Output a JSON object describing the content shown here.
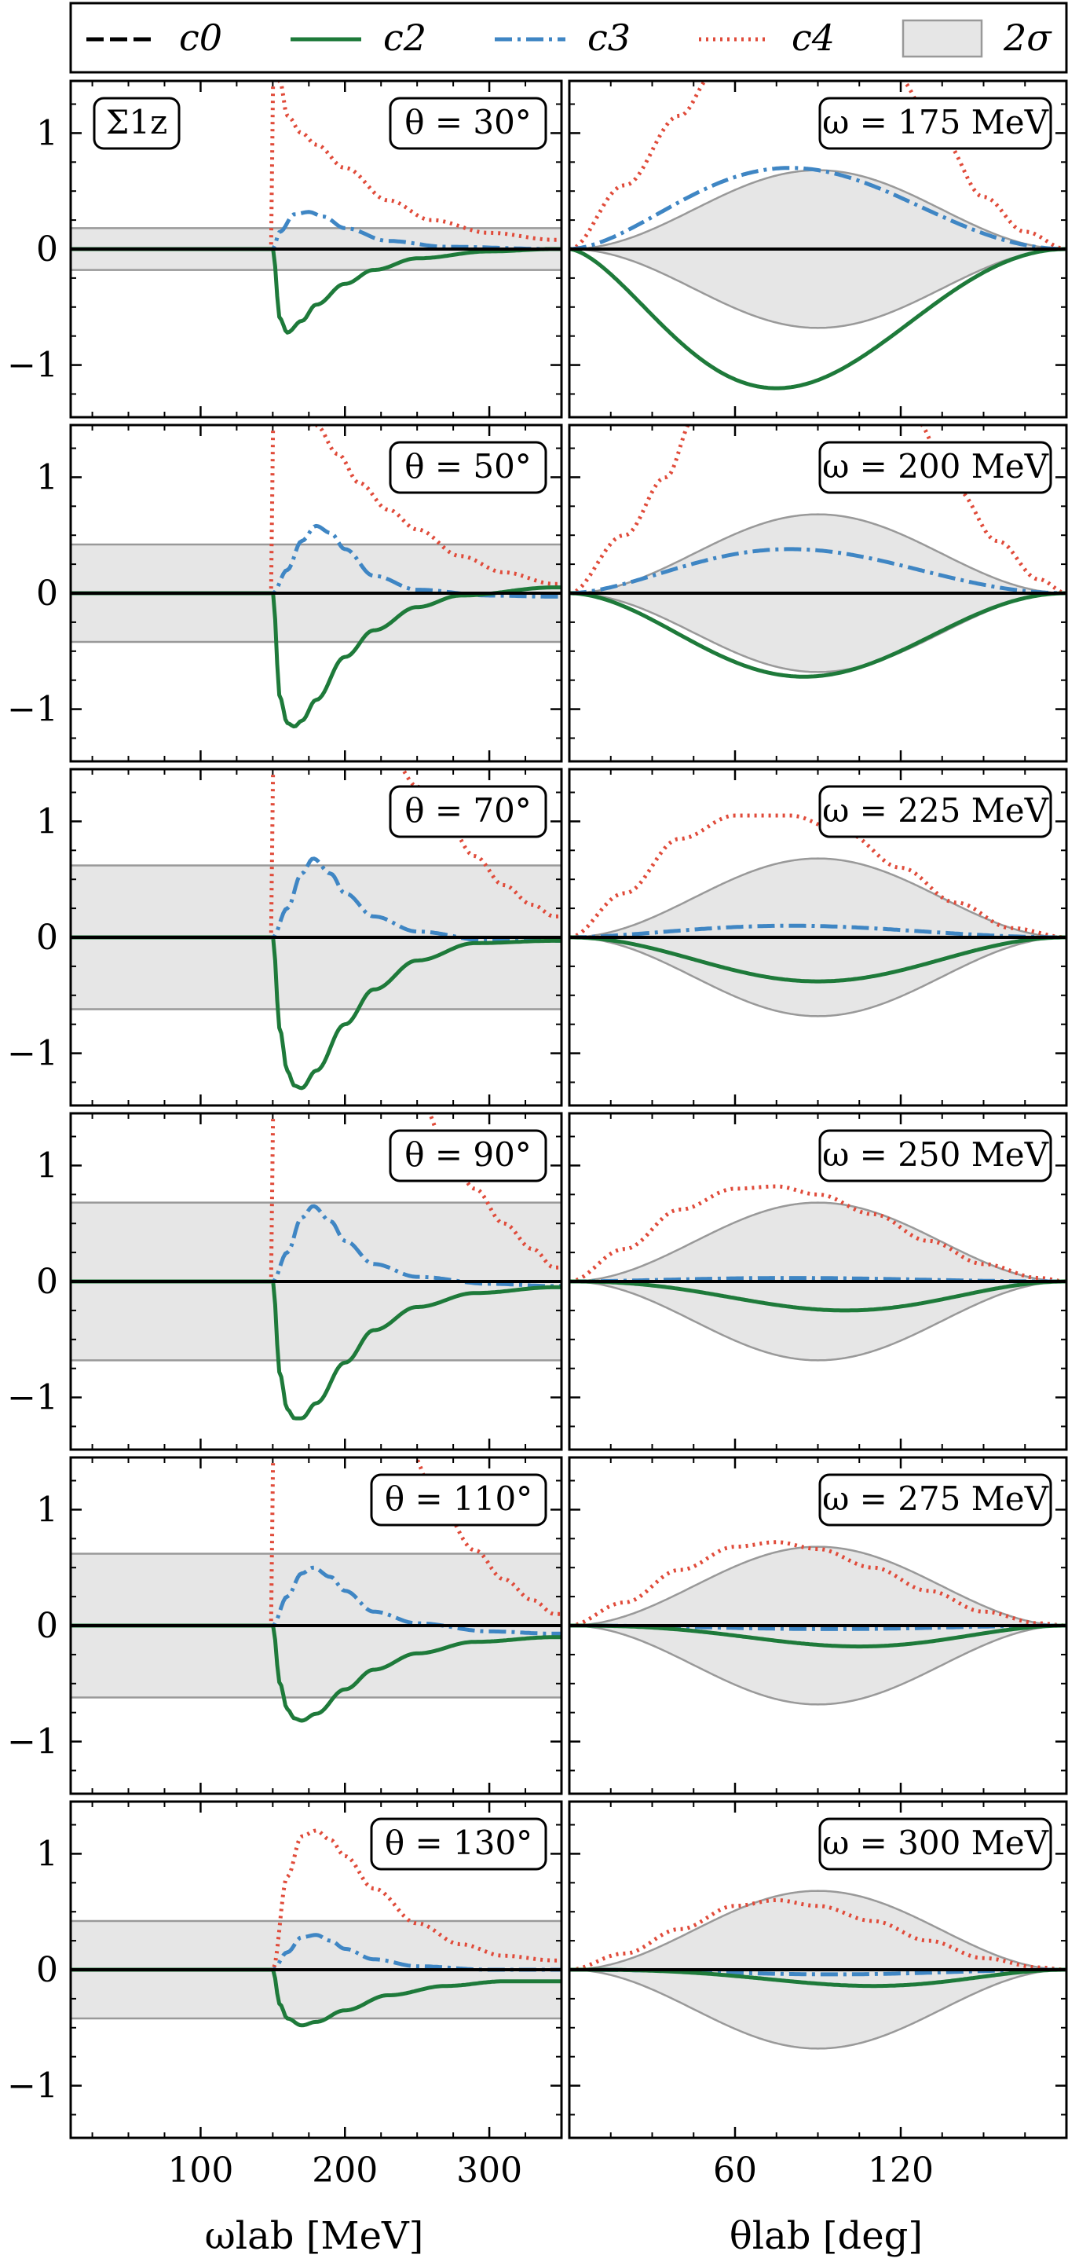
{
  "figure": {
    "panel_tag": "Σ1z",
    "legend": [
      {
        "key": "c0",
        "label": "c0",
        "color": "#000000",
        "style": "dashed"
      },
      {
        "key": "c2",
        "label": "c2",
        "color": "#1e7a3a",
        "style": "solid"
      },
      {
        "key": "c3",
        "label": "c3",
        "color": "#3f86c4",
        "style": "dashdot"
      },
      {
        "key": "c4",
        "label": "c4",
        "color": "#e04b3a",
        "style": "dotted"
      },
      {
        "key": "band",
        "label": "2σ",
        "color": "#e6e6e6",
        "style": "band"
      }
    ],
    "left_xlabel": "ωlab [MeV]",
    "right_xlabel": "θlab [deg]"
  },
  "chart_data": {
    "type": "line",
    "ylim": [
      -1.45,
      1.45
    ],
    "yticks": [
      -1,
      0,
      1
    ],
    "ytick_labels": [
      "−1",
      "0",
      "1"
    ],
    "left_column": {
      "x_variable": "omega_lab [MeV]",
      "xlim": [
        10,
        350
      ],
      "xticks": [
        100,
        200,
        300
      ],
      "panels": [
        {
          "label": "θ = 30°",
          "band": 0.18,
          "c2": [
            [
              150,
              0
            ],
            [
              155,
              -0.6
            ],
            [
              160,
              -0.72
            ],
            [
              170,
              -0.62
            ],
            [
              180,
              -0.48
            ],
            [
              200,
              -0.3
            ],
            [
              220,
              -0.18
            ],
            [
              250,
              -0.08
            ],
            [
              300,
              -0.02
            ],
            [
              345,
              0
            ]
          ],
          "c3": [
            [
              150,
              0
            ],
            [
              155,
              0.15
            ],
            [
              165,
              0.3
            ],
            [
              175,
              0.32
            ],
            [
              185,
              0.28
            ],
            [
              200,
              0.18
            ],
            [
              230,
              0.07
            ],
            [
              270,
              0.02
            ],
            [
              345,
              0
            ]
          ],
          "c4": [
            [
              150,
              0
            ],
            [
              150,
              1.5
            ],
            [
              155,
              1.45
            ],
            [
              160,
              1.15
            ],
            [
              170,
              1.0
            ],
            [
              180,
              0.9
            ],
            [
              200,
              0.7
            ],
            [
              230,
              0.42
            ],
            [
              260,
              0.25
            ],
            [
              300,
              0.14
            ],
            [
              345,
              0.08
            ]
          ]
        },
        {
          "label": "θ = 50°",
          "band": 0.42,
          "c2": [
            [
              150,
              0
            ],
            [
              155,
              -0.9
            ],
            [
              160,
              -1.12
            ],
            [
              165,
              -1.15
            ],
            [
              170,
              -1.1
            ],
            [
              180,
              -0.92
            ],
            [
              200,
              -0.55
            ],
            [
              220,
              -0.32
            ],
            [
              250,
              -0.12
            ],
            [
              280,
              -0.02
            ],
            [
              345,
              0.05
            ]
          ],
          "c3": [
            [
              150,
              0
            ],
            [
              160,
              0.2
            ],
            [
              170,
              0.45
            ],
            [
              180,
              0.58
            ],
            [
              190,
              0.52
            ],
            [
              200,
              0.38
            ],
            [
              220,
              0.15
            ],
            [
              250,
              0.03
            ],
            [
              300,
              -0.02
            ],
            [
              345,
              -0.03
            ]
          ],
          "c4": [
            [
              150,
              0
            ],
            [
              150,
              1.5
            ],
            [
              180,
              1.45
            ],
            [
              195,
              1.2
            ],
            [
              210,
              0.95
            ],
            [
              230,
              0.72
            ],
            [
              250,
              0.55
            ],
            [
              280,
              0.32
            ],
            [
              310,
              0.18
            ],
            [
              345,
              0.08
            ]
          ]
        },
        {
          "label": "θ = 70°",
          "band": 0.62,
          "c2": [
            [
              150,
              0
            ],
            [
              155,
              -0.8
            ],
            [
              160,
              -1.15
            ],
            [
              165,
              -1.28
            ],
            [
              170,
              -1.3
            ],
            [
              180,
              -1.15
            ],
            [
              200,
              -0.75
            ],
            [
              220,
              -0.45
            ],
            [
              250,
              -0.2
            ],
            [
              290,
              -0.05
            ],
            [
              345,
              -0.03
            ]
          ],
          "c3": [
            [
              150,
              0
            ],
            [
              160,
              0.25
            ],
            [
              170,
              0.55
            ],
            [
              178,
              0.68
            ],
            [
              190,
              0.55
            ],
            [
              200,
              0.38
            ],
            [
              220,
              0.18
            ],
            [
              250,
              0.05
            ],
            [
              300,
              -0.03
            ],
            [
              345,
              -0.03
            ]
          ],
          "c4": [
            [
              150,
              0
            ],
            [
              150,
              1.5
            ],
            [
              235,
              1.5
            ],
            [
              250,
              1.3
            ],
            [
              270,
              1.0
            ],
            [
              290,
              0.7
            ],
            [
              310,
              0.45
            ],
            [
              330,
              0.28
            ],
            [
              345,
              0.18
            ]
          ]
        },
        {
          "label": "θ = 90°",
          "band": 0.68,
          "c2": [
            [
              150,
              0
            ],
            [
              155,
              -0.8
            ],
            [
              160,
              -1.1
            ],
            [
              165,
              -1.18
            ],
            [
              170,
              -1.18
            ],
            [
              180,
              -1.05
            ],
            [
              200,
              -0.7
            ],
            [
              220,
              -0.42
            ],
            [
              250,
              -0.22
            ],
            [
              290,
              -0.1
            ],
            [
              345,
              -0.05
            ]
          ],
          "c3": [
            [
              150,
              0
            ],
            [
              160,
              0.25
            ],
            [
              170,
              0.55
            ],
            [
              178,
              0.65
            ],
            [
              190,
              0.52
            ],
            [
              200,
              0.35
            ],
            [
              220,
              0.15
            ],
            [
              250,
              0.04
            ],
            [
              300,
              -0.02
            ],
            [
              345,
              -0.04
            ]
          ],
          "c4": [
            [
              150,
              0
            ],
            [
              150,
              1.5
            ],
            [
              255,
              1.5
            ],
            [
              270,
              1.15
            ],
            [
              290,
              0.8
            ],
            [
              310,
              0.5
            ],
            [
              330,
              0.28
            ],
            [
              345,
              0.12
            ]
          ]
        },
        {
          "label": "θ = 110°",
          "band": 0.62,
          "c2": [
            [
              150,
              0
            ],
            [
              155,
              -0.5
            ],
            [
              160,
              -0.72
            ],
            [
              165,
              -0.8
            ],
            [
              170,
              -0.82
            ],
            [
              180,
              -0.76
            ],
            [
              200,
              -0.55
            ],
            [
              220,
              -0.38
            ],
            [
              250,
              -0.24
            ],
            [
              290,
              -0.14
            ],
            [
              345,
              -0.1
            ]
          ],
          "c3": [
            [
              150,
              0
            ],
            [
              160,
              0.25
            ],
            [
              170,
              0.45
            ],
            [
              178,
              0.5
            ],
            [
              190,
              0.42
            ],
            [
              200,
              0.3
            ],
            [
              220,
              0.12
            ],
            [
              250,
              0.02
            ],
            [
              300,
              -0.05
            ],
            [
              345,
              -0.07
            ]
          ],
          "c4": [
            [
              150,
              0
            ],
            [
              150,
              1.5
            ],
            [
              245,
              1.5
            ],
            [
              265,
              1.05
            ],
            [
              290,
              0.65
            ],
            [
              310,
              0.4
            ],
            [
              330,
              0.22
            ],
            [
              345,
              0.1
            ]
          ]
        },
        {
          "label": "θ = 130°",
          "band": 0.42,
          "c2": [
            [
              150,
              0
            ],
            [
              155,
              -0.3
            ],
            [
              160,
              -0.42
            ],
            [
              170,
              -0.48
            ],
            [
              180,
              -0.45
            ],
            [
              200,
              -0.35
            ],
            [
              230,
              -0.22
            ],
            [
              270,
              -0.14
            ],
            [
              310,
              -0.1
            ],
            [
              345,
              -0.1
            ]
          ],
          "c3": [
            [
              150,
              0
            ],
            [
              160,
              0.15
            ],
            [
              170,
              0.28
            ],
            [
              180,
              0.3
            ],
            [
              190,
              0.25
            ],
            [
              200,
              0.18
            ],
            [
              220,
              0.09
            ],
            [
              250,
              0.03
            ],
            [
              300,
              0
            ],
            [
              345,
              0
            ]
          ],
          "c4": [
            [
              150,
              0
            ],
            [
              160,
              0.8
            ],
            [
              170,
              1.15
            ],
            [
              180,
              1.2
            ],
            [
              190,
              1.12
            ],
            [
              200,
              0.98
            ],
            [
              220,
              0.7
            ],
            [
              250,
              0.4
            ],
            [
              280,
              0.22
            ],
            [
              310,
              0.12
            ],
            [
              345,
              0.08
            ]
          ]
        }
      ]
    },
    "right_column": {
      "x_variable": "theta_lab [deg]",
      "xlim": [
        0,
        180
      ],
      "xticks": [
        60,
        120
      ],
      "panels": [
        {
          "label": "ω = 175 MeV",
          "band_amp": 0.68,
          "c2_amp": -1.2,
          "c2_peak": 75,
          "c3_amp": 0.7,
          "c3_peak": 80,
          "c4": [
            [
              0,
              0
            ],
            [
              20,
              0.55
            ],
            [
              40,
              1.15
            ],
            [
              52,
              1.5
            ],
            [
              118,
              1.5
            ],
            [
              135,
              0.95
            ],
            [
              150,
              0.45
            ],
            [
              165,
              0.15
            ],
            [
              180,
              0
            ]
          ]
        },
        {
          "label": "ω = 200 MeV",
          "band_amp": 0.68,
          "c2_amp": -0.72,
          "c2_peak": 85,
          "c3_amp": 0.38,
          "c3_peak": 80,
          "c4": [
            [
              0,
              0
            ],
            [
              20,
              0.5
            ],
            [
              35,
              1.0
            ],
            [
              45,
              1.5
            ],
            [
              125,
              1.5
            ],
            [
              140,
              0.9
            ],
            [
              155,
              0.45
            ],
            [
              170,
              0.12
            ],
            [
              180,
              0
            ]
          ]
        },
        {
          "label": "ω = 225 MeV",
          "band_amp": 0.68,
          "c2_amp": -0.38,
          "c2_peak": 90,
          "c3_amp": 0.1,
          "c3_peak": 80,
          "c4": [
            [
              0,
              0
            ],
            [
              20,
              0.38
            ],
            [
              40,
              0.85
            ],
            [
              60,
              1.05
            ],
            [
              80,
              1.05
            ],
            [
              100,
              0.9
            ],
            [
              120,
              0.6
            ],
            [
              140,
              0.3
            ],
            [
              160,
              0.08
            ],
            [
              180,
              0
            ]
          ]
        },
        {
          "label": "ω = 250 MeV",
          "band_amp": 0.68,
          "c2_amp": -0.25,
          "c2_peak": 100,
          "c3_amp": 0.03,
          "c3_peak": 80,
          "c4": [
            [
              0,
              0
            ],
            [
              20,
              0.28
            ],
            [
              40,
              0.62
            ],
            [
              60,
              0.8
            ],
            [
              75,
              0.82
            ],
            [
              90,
              0.75
            ],
            [
              110,
              0.58
            ],
            [
              130,
              0.35
            ],
            [
              150,
              0.15
            ],
            [
              170,
              0.03
            ],
            [
              180,
              0
            ]
          ]
        },
        {
          "label": "ω = 275 MeV",
          "band_amp": 0.68,
          "c2_amp": -0.18,
          "c2_peak": 105,
          "c3_amp": -0.03,
          "c3_peak": 95,
          "c4": [
            [
              0,
              0
            ],
            [
              20,
              0.2
            ],
            [
              40,
              0.48
            ],
            [
              60,
              0.68
            ],
            [
              75,
              0.72
            ],
            [
              90,
              0.66
            ],
            [
              110,
              0.5
            ],
            [
              130,
              0.3
            ],
            [
              150,
              0.12
            ],
            [
              170,
              0.02
            ],
            [
              180,
              0
            ]
          ]
        },
        {
          "label": "ω = 300 MeV",
          "band_amp": 0.68,
          "c2_amp": -0.14,
          "c2_peak": 110,
          "c3_amp": -0.04,
          "c3_peak": 95,
          "c4": [
            [
              0,
              0
            ],
            [
              20,
              0.14
            ],
            [
              40,
              0.35
            ],
            [
              60,
              0.55
            ],
            [
              75,
              0.6
            ],
            [
              90,
              0.55
            ],
            [
              110,
              0.42
            ],
            [
              130,
              0.25
            ],
            [
              150,
              0.1
            ],
            [
              170,
              0.02
            ],
            [
              180,
              0
            ]
          ]
        }
      ]
    }
  }
}
